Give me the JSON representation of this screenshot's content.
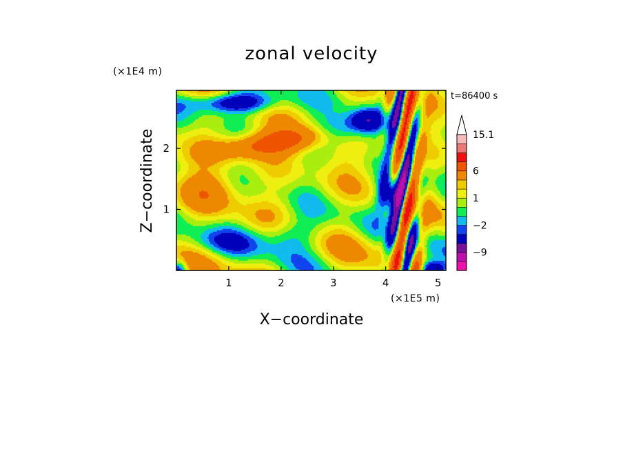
{
  "chart_data": {
    "type": "heatmap",
    "title": "zonal velocity",
    "xlabel": "X−coordinate",
    "ylabel": "Z−coordinate",
    "x_unit": "(×1E5 m)",
    "y_unit": "(×1E4 m)",
    "time_label": "t=86400 s",
    "xlim": [
      0,
      5.15
    ],
    "ylim": [
      0,
      2.95
    ],
    "x_ticks": [
      1,
      2,
      3,
      4,
      5
    ],
    "y_ticks": [
      1,
      2
    ],
    "colorbar": {
      "levels": [
        -15,
        -12,
        -9,
        -6,
        -3,
        -2,
        -1,
        0,
        1,
        2,
        3,
        6,
        9,
        12,
        15.1
      ],
      "labels": [
        {
          "value": 15.1,
          "text": "15.1"
        },
        {
          "value": 6,
          "text": "6"
        },
        {
          "value": 1,
          "text": "1"
        },
        {
          "value": -2,
          "text": "−2"
        },
        {
          "value": -9,
          "text": "−9"
        }
      ],
      "colors": [
        "#ee11aa",
        "#bb11aa",
        "#771199",
        "#0000bb",
        "#1144ee",
        "#11bbee",
        "#11ee55",
        "#aaee11",
        "#eeee11",
        "#eecc00",
        "#ee8800",
        "#ee5500",
        "#ee1111",
        "#ee7777",
        "#f5bbbb"
      ],
      "extend_max": true
    }
  }
}
